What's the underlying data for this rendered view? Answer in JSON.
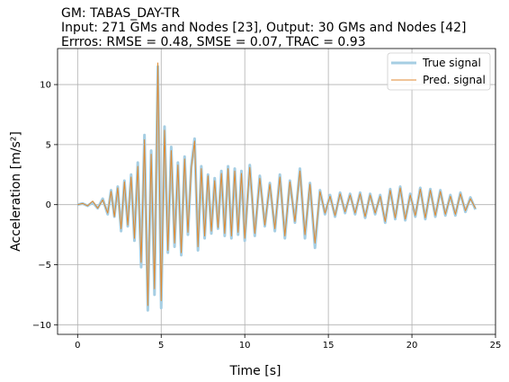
{
  "chart_data": {
    "type": "line",
    "title_lines": [
      "GM: TABAS_DAY-TR",
      "Input: 271 GMs and Nodes [23], Output: 30 GMs and Nodes [42]",
      "Errros: RMSE = 0.48, SMSE = 0.07, TRAC = 0.93"
    ],
    "xlabel": "Time [s]",
    "ylabel": "Acceleration [m/s²]",
    "xlim": [
      -1.2,
      25.0
    ],
    "ylim": [
      -10.8,
      13.0
    ],
    "xticks": [
      0,
      5,
      10,
      15,
      20,
      25
    ],
    "yticks": [
      -10,
      -5,
      0,
      5,
      10
    ],
    "grid": true,
    "legend_position": "top-right",
    "series": [
      {
        "name": "True signal",
        "color": "#a6cee3",
        "linewidth": 3,
        "x": [
          0,
          0.3,
          0.6,
          0.9,
          1.2,
          1.5,
          1.8,
          2.0,
          2.2,
          2.4,
          2.6,
          2.8,
          3.0,
          3.2,
          3.4,
          3.6,
          3.8,
          4.0,
          4.2,
          4.4,
          4.6,
          4.8,
          5.0,
          5.2,
          5.4,
          5.6,
          5.8,
          6.0,
          6.2,
          6.4,
          6.6,
          6.8,
          7.0,
          7.2,
          7.4,
          7.6,
          7.8,
          8.0,
          8.2,
          8.4,
          8.6,
          8.8,
          9.0,
          9.2,
          9.4,
          9.6,
          9.8,
          10.0,
          10.3,
          10.6,
          10.9,
          11.2,
          11.5,
          11.8,
          12.1,
          12.4,
          12.7,
          13.0,
          13.3,
          13.6,
          13.9,
          14.2,
          14.5,
          14.8,
          15.1,
          15.4,
          15.7,
          16.0,
          16.3,
          16.6,
          16.9,
          17.2,
          17.5,
          17.8,
          18.1,
          18.4,
          18.7,
          19.0,
          19.3,
          19.6,
          19.9,
          20.2,
          20.5,
          20.8,
          21.1,
          21.4,
          21.7,
          22.0,
          22.3,
          22.6,
          22.9,
          23.2,
          23.5,
          23.8
        ],
        "y": [
          0,
          0.1,
          -0.1,
          0.2,
          -0.3,
          0.5,
          -0.8,
          1.2,
          -1.0,
          1.5,
          -2.2,
          2.0,
          -1.8,
          2.5,
          -3.0,
          3.5,
          -5.2,
          5.8,
          -8.8,
          4.5,
          -7.5,
          11.5,
          -8.6,
          6.5,
          -4.0,
          4.8,
          -3.5,
          3.5,
          -4.2,
          4.0,
          -2.5,
          3.2,
          5.5,
          -3.8,
          3.2,
          -2.8,
          2.5,
          -2.4,
          2.2,
          -2.0,
          2.8,
          -2.6,
          3.2,
          -2.8,
          3.0,
          -2.5,
          2.8,
          -3.0,
          3.3,
          -2.6,
          2.4,
          -1.8,
          1.8,
          -2.2,
          2.5,
          -2.8,
          2.0,
          -1.5,
          3.0,
          -2.8,
          1.8,
          -3.6,
          1.2,
          -0.8,
          0.8,
          -1.0,
          1.0,
          -0.7,
          0.9,
          -0.8,
          1.0,
          -1.1,
          0.9,
          -0.8,
          0.8,
          -1.5,
          1.3,
          -1.2,
          1.5,
          -1.3,
          0.9,
          -1.0,
          1.4,
          -1.2,
          1.3,
          -1.0,
          1.2,
          -0.9,
          0.8,
          -0.9,
          1.0,
          -0.6,
          0.6,
          -0.4
        ]
      },
      {
        "name": "Pred. signal",
        "color": "#e08a30",
        "linewidth": 1,
        "x": [
          0,
          0.3,
          0.6,
          0.9,
          1.2,
          1.5,
          1.8,
          2.0,
          2.2,
          2.4,
          2.6,
          2.8,
          3.0,
          3.2,
          3.4,
          3.6,
          3.8,
          4.0,
          4.2,
          4.4,
          4.6,
          4.8,
          5.0,
          5.2,
          5.4,
          5.6,
          5.8,
          6.0,
          6.2,
          6.4,
          6.6,
          6.8,
          7.0,
          7.2,
          7.4,
          7.6,
          7.8,
          8.0,
          8.2,
          8.4,
          8.6,
          8.8,
          9.0,
          9.2,
          9.4,
          9.6,
          9.8,
          10.0,
          10.3,
          10.6,
          10.9,
          11.2,
          11.5,
          11.8,
          12.1,
          12.4,
          12.7,
          13.0,
          13.3,
          13.6,
          13.9,
          14.2,
          14.5,
          14.8,
          15.1,
          15.4,
          15.7,
          16.0,
          16.3,
          16.6,
          16.9,
          17.2,
          17.5,
          17.8,
          18.1,
          18.4,
          18.7,
          19.0,
          19.3,
          19.6,
          19.9,
          20.2,
          20.5,
          20.8,
          21.1,
          21.4,
          21.7,
          22.0,
          22.3,
          22.6,
          22.9,
          23.2,
          23.5,
          23.8
        ],
        "y": [
          0,
          0.1,
          -0.1,
          0.3,
          -0.3,
          0.4,
          -0.7,
          1.1,
          -1.0,
          1.4,
          -2.0,
          1.9,
          -1.7,
          2.3,
          -2.8,
          3.2,
          -4.8,
          5.4,
          -8.4,
          4.2,
          -7.0,
          11.8,
          -8.0,
          6.2,
          -3.8,
          4.5,
          -3.2,
          3.3,
          -4.0,
          3.8,
          -2.3,
          3.0,
          5.3,
          -3.5,
          3.0,
          -2.6,
          2.4,
          -2.2,
          2.0,
          -1.9,
          2.6,
          -2.4,
          3.0,
          -2.6,
          2.8,
          -2.3,
          2.6,
          -2.8,
          3.1,
          -2.4,
          2.2,
          -1.7,
          1.7,
          -2.0,
          2.3,
          -2.6,
          1.9,
          -1.4,
          2.8,
          -2.5,
          1.7,
          -3.2,
          1.1,
          -0.7,
          0.7,
          -0.9,
          0.9,
          -0.6,
          0.8,
          -0.7,
          0.9,
          -1.0,
          0.8,
          -0.7,
          0.7,
          -1.4,
          1.2,
          -1.1,
          1.4,
          -1.2,
          0.8,
          -0.9,
          1.3,
          -1.1,
          1.2,
          -0.9,
          1.1,
          -0.8,
          0.7,
          -0.8,
          0.9,
          -0.5,
          0.5,
          -0.3
        ]
      }
    ]
  }
}
